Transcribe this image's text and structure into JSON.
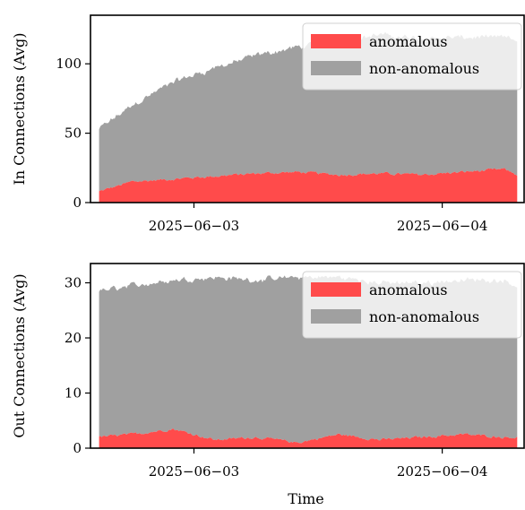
{
  "chart_data": [
    {
      "type": "area",
      "stacked": true,
      "ylabel": "In Connections (Avg)",
      "xlabel": "",
      "x_ticks": [
        "2025−06−03",
        "2025−06−04"
      ],
      "x_range": [
        "2025-06-02T14:00",
        "2025-06-04T08:00"
      ],
      "ylim": [
        0,
        135
      ],
      "y_ticks": [
        0,
        50,
        100
      ],
      "grid": false,
      "legend": "top-right",
      "series": [
        {
          "name": "anomalous",
          "color": "#ff4b4b",
          "x": [
            "2025-06-02T14:50",
            "2025-06-02T18:00",
            "2025-06-02T22:00",
            "2025-06-03T02:00",
            "2025-06-03T06:00",
            "2025-06-03T10:00",
            "2025-06-03T14:00",
            "2025-06-03T18:00",
            "2025-06-03T22:00",
            "2025-06-04T02:00",
            "2025-06-04T06:00",
            "2025-06-04T07:15"
          ],
          "values": [
            8,
            15,
            17,
            19,
            21,
            22,
            20,
            21,
            20,
            22,
            24,
            20
          ]
        },
        {
          "name": "non-anomalous",
          "color": "#a0a0a0",
          "x": [
            "2025-06-02T14:50",
            "2025-06-02T18:00",
            "2025-06-02T22:00",
            "2025-06-03T02:00",
            "2025-06-03T06:00",
            "2025-06-03T10:00",
            "2025-06-03T14:00",
            "2025-06-03T18:00",
            "2025-06-03T22:00",
            "2025-06-04T02:00",
            "2025-06-04T06:00",
            "2025-06-04T07:15"
          ],
          "values": [
            45,
            55,
            70,
            78,
            85,
            90,
            96,
            100,
            98,
            97,
            95,
            97
          ]
        }
      ]
    },
    {
      "type": "area",
      "stacked": true,
      "ylabel": "Out Connections (Avg)",
      "xlabel": "Time",
      "x_ticks": [
        "2025−06−03",
        "2025−06−04"
      ],
      "x_range": [
        "2025-06-02T14:00",
        "2025-06-04T08:00"
      ],
      "ylim": [
        0,
        33.5
      ],
      "y_ticks": [
        0,
        10,
        20,
        30
      ],
      "grid": false,
      "legend": "top-right",
      "series": [
        {
          "name": "anomalous",
          "color": "#ff4b4b",
          "x": [
            "2025-06-02T14:50",
            "2025-06-02T18:00",
            "2025-06-02T22:00",
            "2025-06-03T02:00",
            "2025-06-03T06:00",
            "2025-06-03T10:00",
            "2025-06-03T14:00",
            "2025-06-03T18:00",
            "2025-06-03T22:00",
            "2025-06-04T02:00",
            "2025-06-04T06:00",
            "2025-06-04T07:15"
          ],
          "values": [
            2,
            2.5,
            3.5,
            1.5,
            2,
            1,
            2.5,
            1.5,
            2,
            2.5,
            2,
            2
          ]
        },
        {
          "name": "non-anomalous",
          "color": "#a0a0a0",
          "x": [
            "2025-06-02T14:50",
            "2025-06-02T18:00",
            "2025-06-02T22:00",
            "2025-06-03T02:00",
            "2025-06-03T06:00",
            "2025-06-03T10:00",
            "2025-06-03T14:00",
            "2025-06-03T18:00",
            "2025-06-03T22:00",
            "2025-06-04T02:00",
            "2025-06-04T06:00",
            "2025-06-04T07:15"
          ],
          "values": [
            26.5,
            27,
            27,
            29.5,
            28.5,
            30,
            28.5,
            28.5,
            28,
            28,
            28.5,
            27.5
          ]
        }
      ]
    }
  ]
}
